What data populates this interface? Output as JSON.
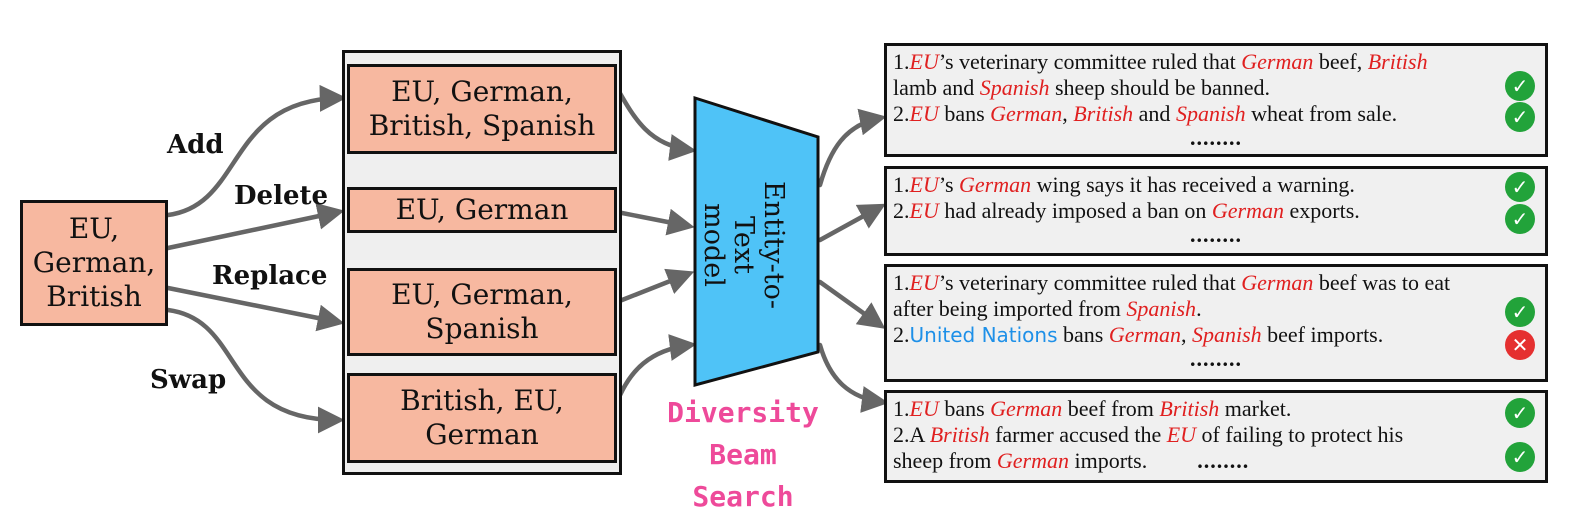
{
  "source": {
    "label": "EU,\nGerman,\nBritish"
  },
  "operations": [
    "Add",
    "Delete",
    "Replace",
    "Swap"
  ],
  "variants": [
    {
      "label": "EU, German,\nBritish, Spanish"
    },
    {
      "label": "EU, German"
    },
    {
      "label": "EU, German,\nSpanish"
    },
    {
      "label": "British, EU,\nGerman"
    }
  ],
  "model": {
    "label": "Entity-to-Text\nmodel"
  },
  "search": {
    "label": "Diversity Beam\nSearch"
  },
  "ellipsis": "........",
  "outputs": [
    {
      "sentences": [
        {
          "num": "1.",
          "segments": [
            {
              "t": "EU",
              "e": true
            },
            {
              "t": "’s veterinary committee ruled that "
            },
            {
              "t": "German",
              "e": true
            },
            {
              "t": " beef, "
            },
            {
              "t": "British",
              "e": true
            },
            {
              "br": true
            },
            {
              "t": "lamb and "
            },
            {
              "t": "Spanish",
              "e": true
            },
            {
              "t": " sheep should be banned."
            }
          ],
          "valid": true
        },
        {
          "num": "2.",
          "segments": [
            {
              "t": "EU",
              "e": true
            },
            {
              "t": " bans "
            },
            {
              "t": "German",
              "e": true
            },
            {
              "t": ", "
            },
            {
              "t": "British",
              "e": true
            },
            {
              "t": " and "
            },
            {
              "t": "Spanish",
              "e": true
            },
            {
              "t": " wheat from sale."
            }
          ],
          "valid": true
        }
      ]
    },
    {
      "sentences": [
        {
          "num": "1.",
          "segments": [
            {
              "t": "EU",
              "e": true
            },
            {
              "t": "’s "
            },
            {
              "t": "German",
              "e": true
            },
            {
              "t": " wing says it has received a warning."
            }
          ],
          "valid": true
        },
        {
          "num": "2.",
          "segments": [
            {
              "t": "EU",
              "e": true
            },
            {
              "t": " had already imposed a ban on "
            },
            {
              "t": "German",
              "e": true
            },
            {
              "t": " exports."
            }
          ],
          "valid": true
        }
      ]
    },
    {
      "sentences": [
        {
          "num": "1.",
          "segments": [
            {
              "t": "EU",
              "e": true
            },
            {
              "t": "’s veterinary committee ruled that "
            },
            {
              "t": "German",
              "e": true
            },
            {
              "t": " beef was to eat"
            },
            {
              "br": true
            },
            {
              "t": "after being imported from "
            },
            {
              "t": "Spanish",
              "e": true
            },
            {
              "t": "."
            }
          ],
          "valid": true
        },
        {
          "num": "2.",
          "segments": [
            {
              "t": "United Nations",
              "u": true
            },
            {
              "t": " bans "
            },
            {
              "t": "German",
              "e": true
            },
            {
              "t": ", "
            },
            {
              "t": "Spanish",
              "e": true
            },
            {
              "t": " beef imports."
            }
          ],
          "valid": false
        }
      ]
    },
    {
      "sentences": [
        {
          "num": "1.",
          "segments": [
            {
              "t": "EU",
              "e": true
            },
            {
              "t": " bans "
            },
            {
              "t": "German",
              "e": true
            },
            {
              "t": " beef from "
            },
            {
              "t": "British",
              "e": true
            },
            {
              "t": " market."
            }
          ],
          "valid": true
        },
        {
          "num": "2.",
          "segments": [
            {
              "t": "A "
            },
            {
              "t": "British",
              "e": true
            },
            {
              "t": " farmer accused the "
            },
            {
              "t": "EU",
              "e": true
            },
            {
              "t": " of failing to protect his"
            },
            {
              "br": true
            },
            {
              "t": "sheep from "
            },
            {
              "t": "German",
              "e": true
            },
            {
              "t": " imports."
            }
          ],
          "valid": true
        }
      ]
    }
  ],
  "colors": {
    "box_fill": "#f7b8a0",
    "model_fill": "#4fc3f7",
    "entity": "#e02020",
    "wrong_entity": "#1e90e8",
    "search_label": "#ee4a9a",
    "valid": "#22a33a",
    "invalid": "#e53030"
  },
  "icons": {
    "valid": "check-circle-icon",
    "invalid": "cross-circle-icon"
  }
}
